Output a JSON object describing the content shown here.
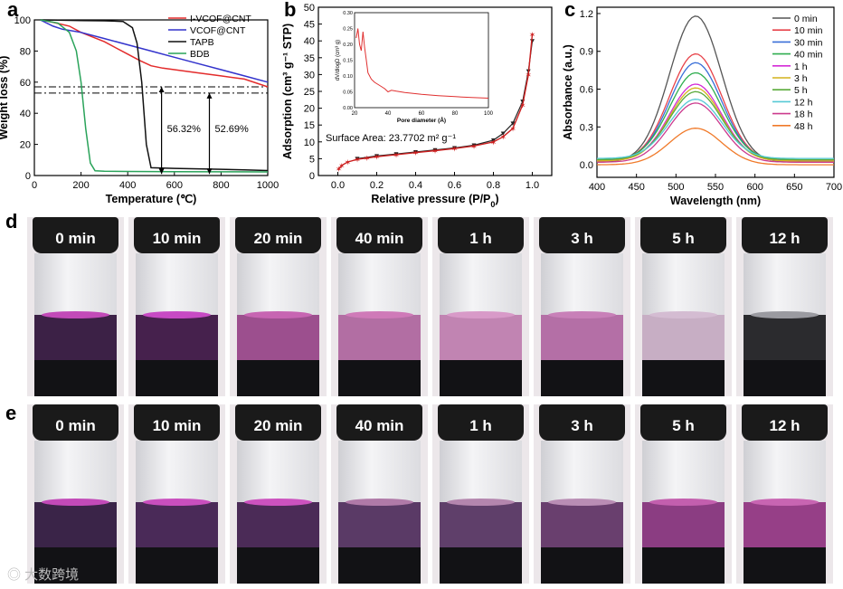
{
  "panel_labels": {
    "a": "a",
    "b": "b",
    "c": "c",
    "d": "d",
    "e": "e"
  },
  "chart_data": [
    {
      "id": "a",
      "type": "line",
      "xlabel": "Temperature (℃)",
      "ylabel": "Weight loss (%)",
      "xlim": [
        0,
        1000
      ],
      "ylim": [
        0,
        100
      ],
      "xticks": [
        0,
        200,
        400,
        600,
        800,
        1000
      ],
      "yticks": [
        0,
        20,
        40,
        60,
        80,
        100
      ],
      "series": [
        {
          "name": "I-VCOF@CNT",
          "color": "#e32b2b",
          "x": [
            25,
            80,
            150,
            200,
            300,
            350,
            400,
            450,
            500,
            550,
            600,
            700,
            800,
            900,
            1000
          ],
          "y": [
            100,
            98.5,
            96,
            92,
            86,
            82,
            78,
            74,
            70.5,
            69,
            68,
            66,
            64,
            62,
            57
          ]
        },
        {
          "name": "VCOF@CNT",
          "color": "#3333cc",
          "x": [
            25,
            80,
            120,
            200,
            300,
            400,
            500,
            600,
            700,
            800,
            900,
            1000
          ],
          "y": [
            100,
            96,
            94,
            92,
            88,
            84,
            80,
            76,
            72,
            68,
            64,
            60
          ]
        },
        {
          "name": "TAPB",
          "color": "#111111",
          "x": [
            25,
            100,
            200,
            300,
            380,
            420,
            440,
            460,
            480,
            500,
            600,
            700,
            800,
            900,
            1000
          ],
          "y": [
            100,
            99.8,
            99.6,
            99.4,
            99,
            95,
            85,
            60,
            20,
            5,
            4.6,
            4.3,
            4,
            3.6,
            3.2
          ]
        },
        {
          "name": "BDB",
          "color": "#2aa35a",
          "x": [
            25,
            100,
            150,
            180,
            200,
            220,
            240,
            260,
            300,
            400,
            600,
            800,
            1000
          ],
          "y": [
            100,
            98,
            92,
            80,
            60,
            30,
            8,
            3,
            2.8,
            2.6,
            2.5,
            2.4,
            2.3
          ]
        }
      ],
      "hlines": [
        57,
        53
      ],
      "annotations": [
        "56.32%",
        "52.69%"
      ]
    },
    {
      "id": "b",
      "type": "line",
      "xlabel": "Relative pressure (P/P",
      "xlabel_sub": "0",
      "xlabel_end": ")",
      "ylabel": "Adsorption (cm³ g⁻¹ STP)",
      "xlim": [
        -0.1,
        1.1
      ],
      "ylim": [
        0,
        50
      ],
      "xticks": [
        0.0,
        0.2,
        0.4,
        0.6,
        0.8,
        1.0
      ],
      "yticks": [
        0,
        5,
        10,
        15,
        20,
        25,
        30,
        35,
        40,
        45,
        50
      ],
      "annotation": "Surface Area: 23.7702 m² g⁻¹",
      "series": [
        {
          "name": "adsorption",
          "color": "#cc1f1f",
          "x": [
            0.005,
            0.02,
            0.05,
            0.1,
            0.15,
            0.2,
            0.3,
            0.4,
            0.5,
            0.6,
            0.7,
            0.8,
            0.85,
            0.9,
            0.95,
            0.98,
            1.0
          ],
          "y": [
            2,
            3,
            4,
            4.8,
            5.2,
            5.6,
            6.2,
            6.8,
            7.4,
            8,
            8.8,
            10,
            11.5,
            14,
            21,
            30,
            42
          ]
        },
        {
          "name": "desorption",
          "color": "#222222",
          "x": [
            1.0,
            0.98,
            0.95,
            0.9,
            0.85,
            0.8,
            0.7,
            0.6,
            0.5,
            0.4,
            0.3,
            0.2,
            0.1
          ],
          "y": [
            40,
            31,
            22,
            15.5,
            12.5,
            10.5,
            9,
            8.2,
            7.6,
            7,
            6.4,
            5.8,
            5
          ]
        }
      ],
      "inset": {
        "xlabel": "Pore diameter (Å)",
        "ylabel": "dV/dlogD (cm³ g)",
        "xlim": [
          20,
          100
        ],
        "ylim": [
          0,
          0.3
        ],
        "xticks": [
          20,
          40,
          60,
          80,
          100
        ],
        "yticks": [
          0.0,
          0.05,
          0.1,
          0.15,
          0.2,
          0.25,
          0.3
        ],
        "x": [
          21,
          22,
          23,
          24,
          25,
          26,
          27,
          28,
          30,
          32,
          35,
          38,
          40,
          42,
          45,
          50,
          55,
          60,
          70,
          80,
          90,
          100
        ],
        "y": [
          0.22,
          0.25,
          0.2,
          0.18,
          0.24,
          0.19,
          0.15,
          0.11,
          0.09,
          0.08,
          0.07,
          0.06,
          0.05,
          0.055,
          0.052,
          0.048,
          0.045,
          0.042,
          0.038,
          0.035,
          0.032,
          0.03
        ]
      }
    },
    {
      "id": "c",
      "type": "line",
      "xlabel": "Wavelength (nm)",
      "ylabel": "Absorbance (a.u.)",
      "xlim": [
        400,
        700
      ],
      "ylim": [
        -0.1,
        1.25
      ],
      "xticks": [
        400,
        450,
        500,
        550,
        600,
        650,
        700
      ],
      "yticks": [
        0.0,
        0.3,
        0.6,
        0.9,
        1.2
      ],
      "peak_nm": 525,
      "series": [
        {
          "name": "0 min",
          "color": "#555555",
          "peak": 1.18,
          "base": 0.02
        },
        {
          "name": "10 min",
          "color": "#e8434a",
          "peak": 0.88,
          "base": 0.03
        },
        {
          "name": "30 min",
          "color": "#3a6fd8",
          "peak": 0.81,
          "base": 0.03
        },
        {
          "name": "40 min",
          "color": "#2fae4f",
          "peak": 0.73,
          "base": 0.04
        },
        {
          "name": "1 h",
          "color": "#d42bd6",
          "peak": 0.64,
          "base": 0.03
        },
        {
          "name": "3 h",
          "color": "#d4b21c",
          "peak": 0.61,
          "base": 0.03
        },
        {
          "name": "5 h",
          "color": "#5aaa3a",
          "peak": 0.58,
          "base": 0.04
        },
        {
          "name": "12 h",
          "color": "#56c9d6",
          "peak": 0.52,
          "base": 0.05
        },
        {
          "name": "18 h",
          "color": "#cc3b8e",
          "peak": 0.49,
          "base": 0.02
        },
        {
          "name": "48 h",
          "color": "#f07a2a",
          "peak": 0.29,
          "base": 0.0
        }
      ]
    }
  ],
  "row_d": {
    "vials": [
      {
        "label": "0 min",
        "liquid": "#3c2146",
        "meniscus": "#c24ab8"
      },
      {
        "label": "10 min",
        "liquid": "#46214d",
        "meniscus": "#c74ac4"
      },
      {
        "label": "20 min",
        "liquid": "#9c4f8e",
        "meniscus": "#c765b2"
      },
      {
        "label": "40 min",
        "liquid": "#b26ea3",
        "meniscus": "#cf7ab8"
      },
      {
        "label": "1 h",
        "liquid": "#c184b2",
        "meniscus": "#d89ac8"
      },
      {
        "label": "3 h",
        "liquid": "#b46fa6",
        "meniscus": "#c880b8"
      },
      {
        "label": "5 h",
        "liquid": "#c7aec4",
        "meniscus": "#d4bcd2"
      },
      {
        "label": "12 h",
        "liquid": "#2b2b2e",
        "meniscus": "#9a9aa0"
      }
    ]
  },
  "row_e": {
    "vials": [
      {
        "label": "0 min",
        "liquid": "#3a2448",
        "meniscus": "#c24ab8"
      },
      {
        "label": "10 min",
        "liquid": "#4a2a58",
        "meniscus": "#c94fbe"
      },
      {
        "label": "20 min",
        "liquid": "#4b2b57",
        "meniscus": "#cc52bf"
      },
      {
        "label": "40 min",
        "liquid": "#5a3a66",
        "meniscus": "#b07aa8"
      },
      {
        "label": "1 h",
        "liquid": "#5f3f6a",
        "meniscus": "#b486ae"
      },
      {
        "label": "3 h",
        "liquid": "#693f6e",
        "meniscus": "#b98db4"
      },
      {
        "label": "5 h",
        "liquid": "#8b3d82",
        "meniscus": "#c35fae"
      },
      {
        "label": "12 h",
        "liquid": "#963f87",
        "meniscus": "#c865b2"
      }
    ]
  },
  "watermark": "大数跨境"
}
